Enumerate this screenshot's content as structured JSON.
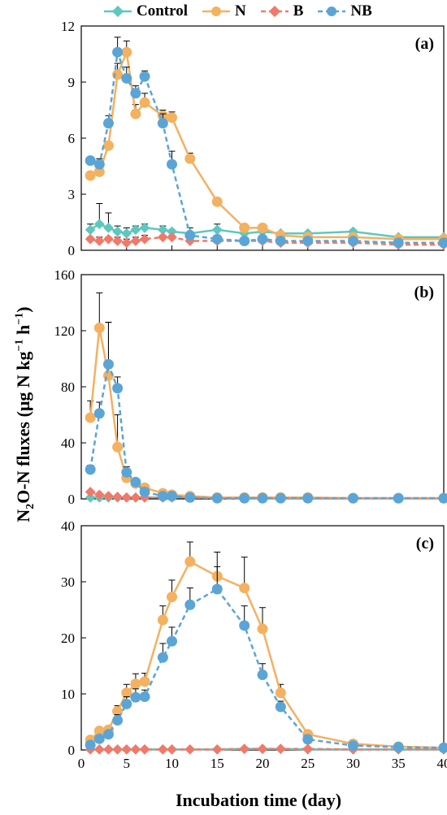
{
  "legend": {
    "control": "Control",
    "n": "N",
    "b": "B",
    "nb": "NB"
  },
  "axis": {
    "y_main": "N",
    "y_sub": "2",
    "y_mid": "O-N fluxes (μg N kg",
    "y_sup1": "−1",
    "y_mid2": " h",
    "y_sup2": "−1",
    "y_end": ")",
    "x": "Incubation time (day)"
  },
  "colors": {
    "control": "#5cc8bf",
    "n": "#f4b160",
    "b": "#f07a6a",
    "nb": "#5ba5d6"
  },
  "chart_data": [
    {
      "type": "line",
      "panel": "(a)",
      "x": [
        1,
        2,
        3,
        4,
        5,
        6,
        7,
        9,
        10,
        12,
        15,
        18,
        20,
        22,
        25,
        30,
        35,
        40
      ],
      "xlim": [
        0,
        40
      ],
      "ylim": [
        0,
        12
      ],
      "yticks": [
        0,
        3,
        6,
        9,
        12
      ],
      "series": [
        {
          "name": "Control",
          "values": [
            1.1,
            1.4,
            1.2,
            1.0,
            0.9,
            1.1,
            1.2,
            1.1,
            1.0,
            0.9,
            1.1,
            0.9,
            1.0,
            0.9,
            0.9,
            1.0,
            0.7,
            0.7
          ],
          "errors": [
            0.3,
            1.1,
            0.8,
            0.3,
            0.3,
            0.2,
            0.2,
            0.2,
            0.1,
            0.3,
            0.3,
            0.2,
            0.3,
            0.1,
            0.1,
            0.1,
            0.1,
            0.1
          ]
        },
        {
          "name": "N",
          "values": [
            4.0,
            4.2,
            5.6,
            9.4,
            10.6,
            7.3,
            7.9,
            7.2,
            7.1,
            4.9,
            2.6,
            1.2,
            1.2,
            0.8,
            0.7,
            0.7,
            0.6,
            0.6
          ],
          "errors": [
            0.1,
            0.2,
            0.1,
            0.6,
            0.6,
            0.5,
            0.5,
            0.3,
            0.3,
            0.3,
            0.1,
            0.1,
            0.1,
            0.1,
            0.1,
            0.1,
            0.1,
            0.1
          ]
        },
        {
          "name": "B",
          "values": [
            0.6,
            0.5,
            0.6,
            0.5,
            0.4,
            0.5,
            0.6,
            0.7,
            0.7,
            0.5,
            0.5,
            0.5,
            0.5,
            0.4,
            0.4,
            0.4,
            0.3,
            0.3
          ],
          "errors": [
            0.1,
            0.2,
            0.1,
            0.2,
            0.2,
            0.2,
            0.2,
            0.1,
            0.1,
            0.1,
            0.1,
            0.1,
            0.1,
            0.1,
            0.1,
            0.1,
            0.1,
            0.1
          ]
        },
        {
          "name": "NB",
          "values": [
            4.8,
            4.6,
            6.8,
            10.6,
            9.2,
            8.4,
            9.3,
            6.8,
            4.6,
            0.8,
            0.6,
            0.5,
            0.6,
            0.5,
            0.5,
            0.5,
            0.4,
            0.4
          ],
          "errors": [
            0.1,
            0.3,
            0.4,
            0.8,
            0.6,
            0.4,
            0.3,
            0.5,
            0.7,
            0.1,
            0.1,
            0.1,
            0.1,
            0.1,
            0.1,
            0.1,
            0.1,
            0.1
          ]
        }
      ]
    },
    {
      "type": "line",
      "panel": "(b)",
      "x": [
        1,
        2,
        3,
        4,
        5,
        6,
        7,
        9,
        10,
        12,
        15,
        18,
        20,
        22,
        25,
        30,
        35,
        40
      ],
      "xlim": [
        0,
        40
      ],
      "ylim": [
        0,
        160
      ],
      "yticks": [
        0,
        40,
        80,
        120,
        160
      ],
      "series": [
        {
          "name": "Control",
          "values": [
            1,
            1,
            1,
            1,
            1,
            1,
            1,
            1,
            1,
            1,
            1,
            0.5,
            0.5,
            0.5,
            0.5,
            0.5,
            0.5,
            0.5
          ],
          "errors": [
            0,
            0,
            0,
            0,
            0,
            0,
            0,
            0,
            0,
            0,
            0,
            0,
            0,
            0,
            0,
            0,
            0,
            0
          ]
        },
        {
          "name": "N",
          "values": [
            58,
            122,
            88,
            37,
            15,
            11,
            8,
            4,
            3,
            2,
            1,
            1,
            1,
            1,
            1,
            0.5,
            0.5,
            0.5
          ],
          "errors": [
            12,
            25,
            38,
            23,
            6,
            2,
            2,
            1,
            1,
            0.5,
            0.5,
            0.5,
            0.5,
            0.5,
            0.5,
            0,
            0,
            0
          ]
        },
        {
          "name": "B",
          "values": [
            5,
            3,
            2,
            1.5,
            1,
            1,
            1,
            1,
            1,
            1,
            0.5,
            0.5,
            0.5,
            0.5,
            0.5,
            0.5,
            0.5,
            0.5
          ],
          "errors": [
            1,
            1,
            0.5,
            0.5,
            0,
            0,
            0,
            0,
            0,
            0,
            0,
            0,
            0,
            0,
            0,
            0,
            0,
            0
          ]
        },
        {
          "name": "NB",
          "values": [
            21,
            61,
            96,
            79,
            19,
            12,
            5,
            2,
            2,
            1,
            0.5,
            0.5,
            0.5,
            0.5,
            0.5,
            0.5,
            0.5,
            0.5
          ],
          "errors": [
            3,
            8,
            30,
            8,
            4,
            2,
            2,
            1,
            1,
            0.5,
            0,
            0,
            0,
            0,
            0,
            0,
            0,
            0
          ]
        }
      ]
    },
    {
      "type": "line",
      "panel": "(c)",
      "x": [
        1,
        2,
        3,
        4,
        5,
        6,
        7,
        9,
        10,
        12,
        15,
        18,
        20,
        22,
        25,
        30,
        35,
        40
      ],
      "xlim": [
        0,
        40
      ],
      "ylim": [
        0,
        40
      ],
      "yticks": [
        0,
        10,
        20,
        30,
        40
      ],
      "series": [
        {
          "name": "Control",
          "values": [
            0.1,
            0.1,
            0.1,
            0.1,
            0.1,
            0.1,
            0.1,
            0.1,
            0.1,
            0.1,
            0.1,
            0.2,
            0.2,
            0.2,
            0.1,
            0.1,
            0.1,
            0.1
          ],
          "errors": [
            0,
            0,
            0,
            0,
            0,
            0,
            0,
            0,
            0,
            0,
            0,
            0,
            0,
            0,
            0,
            0,
            0,
            0
          ]
        },
        {
          "name": "N",
          "values": [
            1.8,
            3.4,
            3.6,
            6.9,
            10.2,
            11.8,
            12.2,
            23.2,
            27.3,
            33.6,
            31.0,
            28.9,
            21.6,
            10.2,
            2.8,
            1.1,
            0.6,
            0.4
          ],
          "errors": [
            0.3,
            0.5,
            0.5,
            1.0,
            1.5,
            1.8,
            1.5,
            2.5,
            3.0,
            3.5,
            4.3,
            5.5,
            3.8,
            1.5,
            0.3,
            0.2,
            0.1,
            0.1
          ]
        },
        {
          "name": "B",
          "values": [
            0.1,
            0.1,
            0.1,
            0.1,
            0.1,
            0.1,
            0.1,
            0.1,
            0.1,
            0.1,
            0.1,
            0.2,
            0.2,
            0.2,
            0.2,
            0.1,
            0.1,
            0.1
          ],
          "errors": [
            0,
            0,
            0,
            0,
            0,
            0,
            0,
            0,
            0,
            0,
            0,
            0,
            0,
            0,
            0,
            0,
            0,
            0
          ]
        },
        {
          "name": "NB",
          "values": [
            0.9,
            2.0,
            2.8,
            5.3,
            8.2,
            9.4,
            9.5,
            16.5,
            19.4,
            25.9,
            28.7,
            22.2,
            13.4,
            7.7,
            1.9,
            0.8,
            0.5,
            0.4
          ],
          "errors": [
            0.3,
            0.4,
            0.5,
            1.0,
            1.3,
            1.5,
            1.2,
            2.5,
            2.5,
            3.0,
            4.0,
            3.5,
            2.0,
            1.0,
            0.3,
            0.2,
            0.1,
            0.1
          ]
        }
      ]
    }
  ]
}
